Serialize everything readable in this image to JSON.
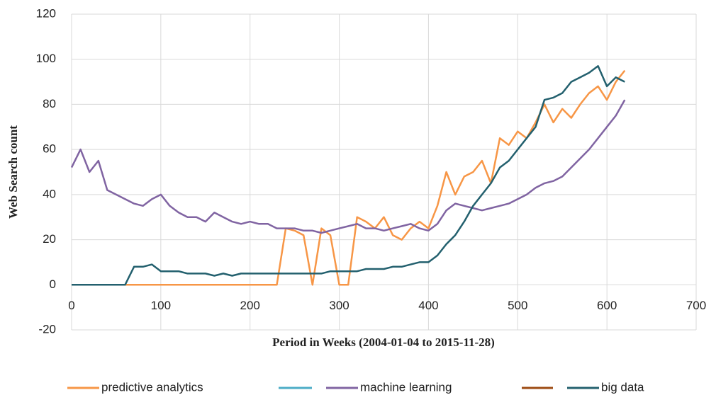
{
  "chart_data": {
    "type": "line",
    "xlabel": "Period in Weeks (2004-01-04 to 2015-11-28)",
    "ylabel": "Web Search count",
    "x": [
      0,
      10,
      20,
      30,
      40,
      50,
      60,
      70,
      80,
      90,
      100,
      110,
      120,
      130,
      140,
      150,
      160,
      170,
      180,
      190,
      200,
      210,
      220,
      230,
      240,
      250,
      260,
      270,
      280,
      290,
      300,
      310,
      320,
      330,
      340,
      350,
      360,
      370,
      380,
      390,
      400,
      410,
      420,
      430,
      440,
      450,
      460,
      470,
      480,
      490,
      500,
      510,
      520,
      530,
      540,
      550,
      560,
      570,
      580,
      590,
      600,
      610,
      620
    ],
    "series": [
      {
        "name": "predictive analytics",
        "color": "#f79646",
        "values": [
          0,
          0,
          0,
          0,
          0,
          0,
          0,
          0,
          0,
          0,
          0,
          0,
          0,
          0,
          0,
          0,
          0,
          0,
          0,
          0,
          0,
          0,
          0,
          0,
          25,
          24,
          22,
          0,
          25,
          22,
          0,
          0,
          30,
          28,
          25,
          30,
          22,
          20,
          25,
          28,
          25,
          35,
          50,
          40,
          48,
          50,
          55,
          45,
          65,
          62,
          68,
          65,
          72,
          80,
          72,
          78,
          74,
          80,
          85,
          88,
          82,
          90,
          95
        ]
      },
      {
        "name": "machine learning",
        "color": "#8064a2",
        "values": [
          52,
          60,
          50,
          55,
          42,
          40,
          38,
          36,
          35,
          38,
          40,
          35,
          32,
          30,
          30,
          28,
          32,
          30,
          28,
          27,
          28,
          27,
          27,
          25,
          25,
          25,
          24,
          24,
          23,
          24,
          25,
          26,
          27,
          25,
          25,
          24,
          25,
          26,
          27,
          25,
          24,
          27,
          33,
          36,
          35,
          34,
          33,
          34,
          35,
          36,
          38,
          40,
          43,
          45,
          46,
          48,
          52,
          56,
          60,
          65,
          70,
          75,
          82
        ]
      },
      {
        "name": "big data",
        "color": "#23606e",
        "values": [
          0,
          0,
          0,
          0,
          0,
          0,
          0,
          8,
          8,
          9,
          6,
          6,
          6,
          5,
          5,
          5,
          4,
          5,
          4,
          5,
          5,
          5,
          5,
          5,
          5,
          5,
          5,
          5,
          5,
          6,
          6,
          6,
          6,
          7,
          7,
          7,
          8,
          8,
          9,
          10,
          10,
          13,
          18,
          22,
          28,
          35,
          40,
          45,
          52,
          55,
          60,
          65,
          70,
          82,
          83,
          85,
          90,
          92,
          94,
          97,
          88,
          92,
          90
        ]
      }
    ],
    "xlim": [
      0,
      700
    ],
    "xticks": [
      0,
      100,
      200,
      300,
      400,
      500,
      600,
      700
    ],
    "ylim": [
      -20,
      120
    ],
    "yticks": [
      -20,
      0,
      20,
      40,
      60,
      80,
      100,
      120
    ],
    "grid": true
  }
}
